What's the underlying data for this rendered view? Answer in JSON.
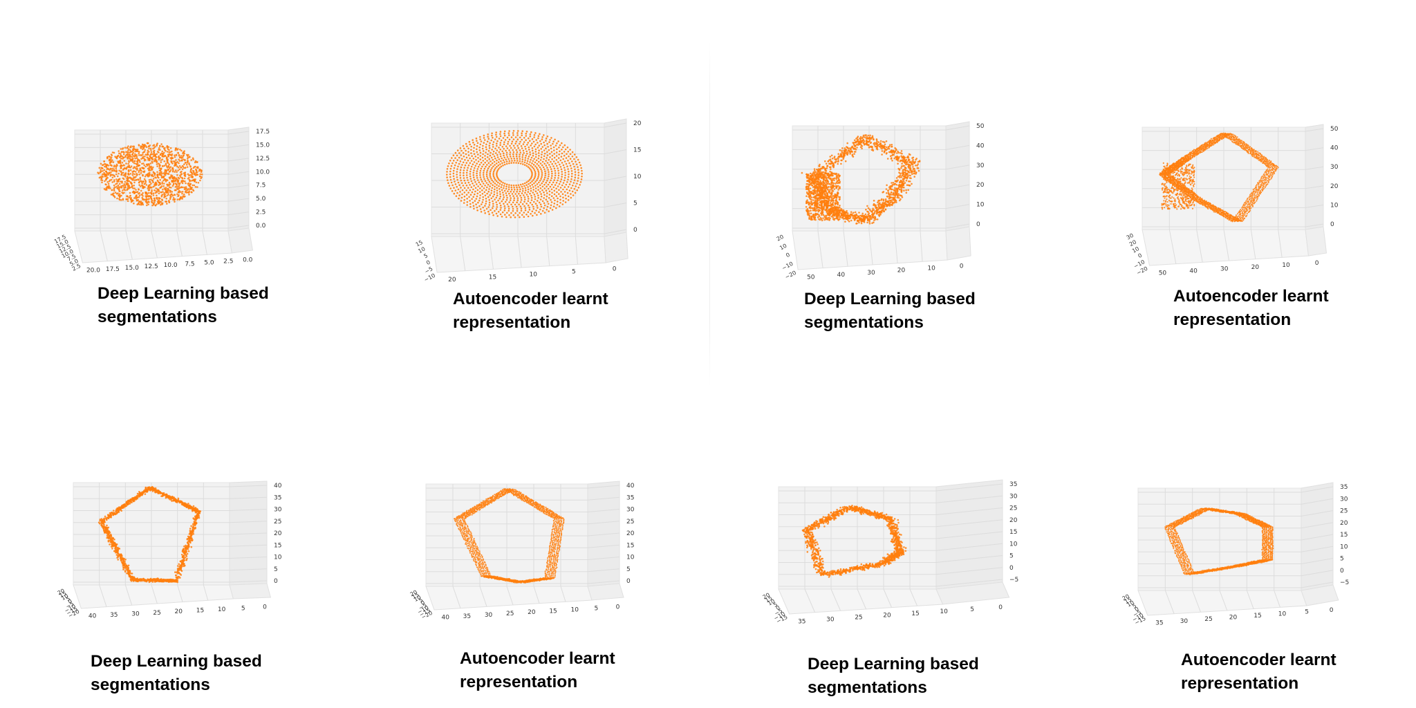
{
  "panels": [
    {
      "id": "p1",
      "caption": [
        "Deep Learning based",
        "segmentations"
      ]
    },
    {
      "id": "p2",
      "caption": [
        "Autoencoder learnt",
        "representation"
      ]
    },
    {
      "id": "p3",
      "caption": [
        "Deep Learning based",
        "segmentations"
      ]
    },
    {
      "id": "p4",
      "caption": [
        "Autoencoder learnt",
        "representation"
      ]
    },
    {
      "id": "p5",
      "caption": [
        "Deep Learning based",
        "segmentations"
      ]
    },
    {
      "id": "p6",
      "caption": [
        "Autoencoder learnt",
        "representation"
      ]
    },
    {
      "id": "p7",
      "caption": [
        "Deep Learning based",
        "segmentations"
      ]
    },
    {
      "id": "p8",
      "caption": [
        "Autoencoder learnt",
        "representation"
      ]
    }
  ],
  "chart_data": [
    {
      "type": "scatter",
      "projection": "3d",
      "shape": "ellipsoid-cloud",
      "color": "#ff7f0e",
      "xticks": [
        "20.0",
        "17.5",
        "15.0",
        "12.5",
        "10.0",
        "7.5",
        "5.0",
        "2.5",
        "0.0"
      ],
      "yticks": [
        "17.5",
        "15.0",
        "12.5",
        "10.0",
        "7.5",
        "5.0",
        "2.5"
      ],
      "zticks": [
        "0.0",
        "2.5",
        "5.0",
        "7.5",
        "10.0",
        "12.5",
        "15.0",
        "17.5"
      ]
    },
    {
      "type": "scatter",
      "projection": "3d",
      "shape": "ellipsoid-shell",
      "color": "#ff7f0e",
      "xticks": [
        "20",
        "15",
        "10",
        "5",
        "0"
      ],
      "yticks": [
        "15",
        "10",
        "5",
        "0",
        "−5",
        "−10"
      ],
      "zticks": [
        "0",
        "5",
        "10",
        "15",
        "20"
      ]
    },
    {
      "type": "scatter",
      "projection": "3d",
      "shape": "loop-cloud",
      "color": "#ff7f0e",
      "xticks": [
        "50",
        "40",
        "30",
        "20",
        "10",
        "0"
      ],
      "yticks": [
        "20",
        "10",
        "0",
        "−10",
        "−20"
      ],
      "zticks": [
        "0",
        "10",
        "20",
        "30",
        "40",
        "50"
      ]
    },
    {
      "type": "scatter",
      "projection": "3d",
      "shape": "loop-shell",
      "color": "#ff7f0e",
      "xticks": [
        "50",
        "40",
        "30",
        "20",
        "10",
        "0"
      ],
      "yticks": [
        "30",
        "20",
        "10",
        "0",
        "−10",
        "−20"
      ],
      "zticks": [
        "0",
        "10",
        "20",
        "30",
        "40",
        "50"
      ]
    },
    {
      "type": "scatter",
      "projection": "3d",
      "shape": "diamond-loop",
      "color": "#ff7f0e",
      "xticks": [
        "40",
        "35",
        "30",
        "25",
        "20",
        "15",
        "10",
        "5",
        "0"
      ],
      "yticks": [
        "20",
        "15",
        "10",
        "5",
        "0",
        "−5",
        "−10",
        "−15",
        "−20"
      ],
      "zticks": [
        "0",
        "5",
        "10",
        "15",
        "20",
        "25",
        "30",
        "35",
        "40"
      ]
    },
    {
      "type": "scatter",
      "projection": "3d",
      "shape": "diamond-shell",
      "color": "#ff7f0e",
      "xticks": [
        "40",
        "35",
        "30",
        "25",
        "20",
        "15",
        "10",
        "5",
        "0"
      ],
      "yticks": [
        "20",
        "15",
        "10",
        "5",
        "0",
        "−5",
        "−10",
        "−15",
        "−20"
      ],
      "zticks": [
        "0",
        "5",
        "10",
        "15",
        "20",
        "25",
        "30",
        "35",
        "40"
      ]
    },
    {
      "type": "scatter",
      "projection": "3d",
      "shape": "ring-cloud",
      "color": "#ff7f0e",
      "xticks": [
        "35",
        "30",
        "25",
        "20",
        "15",
        "10",
        "5",
        "0"
      ],
      "yticks": [
        "20",
        "15",
        "10",
        "5",
        "0",
        "−5",
        "−10",
        "−15"
      ],
      "zticks": [
        "−5",
        "0",
        "5",
        "10",
        "15",
        "20",
        "25",
        "30",
        "35"
      ]
    },
    {
      "type": "scatter",
      "projection": "3d",
      "shape": "ring-shell",
      "color": "#ff7f0e",
      "xticks": [
        "35",
        "30",
        "25",
        "20",
        "15",
        "10",
        "5",
        "0"
      ],
      "yticks": [
        "20",
        "15",
        "10",
        "5",
        "0",
        "−5",
        "−10",
        "−15"
      ],
      "zticks": [
        "−5",
        "0",
        "5",
        "10",
        "15",
        "20",
        "25",
        "30",
        "35"
      ]
    }
  ]
}
